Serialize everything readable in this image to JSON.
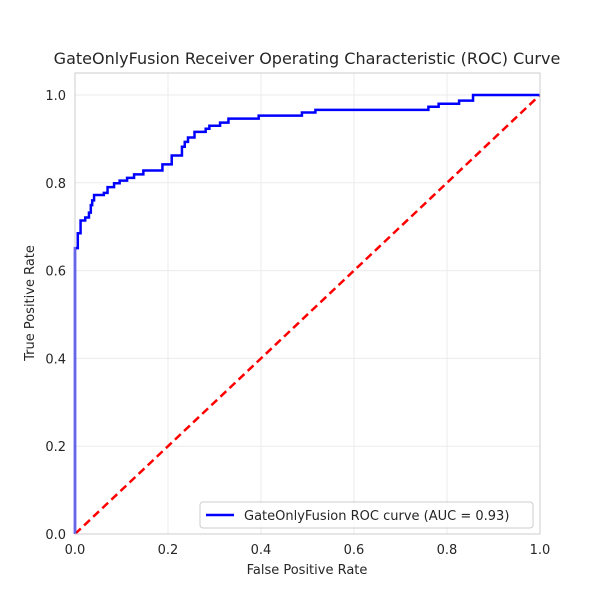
{
  "chart_data": {
    "type": "line",
    "title": "GateOnlyFusion Receiver Operating Characteristic (ROC) Curve",
    "xlabel": "False Positive Rate",
    "ylabel": "True Positive Rate",
    "xlim": [
      0,
      1
    ],
    "ylim": [
      0,
      1.05
    ],
    "x_ticks": [
      0,
      0.2,
      0.4,
      0.6,
      0.8,
      1
    ],
    "x_tick_labels": [
      "0.0",
      "0.2",
      "0.4",
      "0.6",
      "0.8",
      "1.0"
    ],
    "y_ticks": [
      0,
      0.2,
      0.4,
      0.6,
      0.8,
      1
    ],
    "y_tick_labels": [
      "0.0",
      "0.2",
      "0.4",
      "0.6",
      "0.8",
      "1.0"
    ],
    "grid": true,
    "legend_position": "bottom-right",
    "series": [
      {
        "name": "GateOnlyFusion ROC curve (AUC = 0.93)",
        "color": "#0000ff",
        "style": "solid",
        "x": [
          0,
          0,
          0.006,
          0.006,
          0.012,
          0.012,
          0.022,
          0.022,
          0.03,
          0.03,
          0.034,
          0.034,
          0.037,
          0.037,
          0.041,
          0.041,
          0.062,
          0.062,
          0.07,
          0.07,
          0.084,
          0.084,
          0.096,
          0.096,
          0.112,
          0.112,
          0.127,
          0.127,
          0.147,
          0.147,
          0.188,
          0.188,
          0.208,
          0.208,
          0.23,
          0.23,
          0.236,
          0.236,
          0.243,
          0.243,
          0.257,
          0.257,
          0.281,
          0.281,
          0.289,
          0.289,
          0.312,
          0.312,
          0.33,
          0.33,
          0.395,
          0.395,
          0.488,
          0.488,
          0.517,
          0.517,
          0.76,
          0.76,
          0.782,
          0.782,
          0.826,
          0.826,
          0.856,
          0.856,
          1.0
        ],
        "y": [
          0,
          0.651,
          0.651,
          0.685,
          0.685,
          0.714,
          0.714,
          0.721,
          0.721,
          0.732,
          0.732,
          0.749,
          0.749,
          0.76,
          0.76,
          0.772,
          0.772,
          0.777,
          0.777,
          0.79,
          0.79,
          0.799,
          0.799,
          0.805,
          0.805,
          0.811,
          0.811,
          0.819,
          0.819,
          0.828,
          0.828,
          0.842,
          0.842,
          0.862,
          0.862,
          0.882,
          0.882,
          0.893,
          0.893,
          0.903,
          0.903,
          0.916,
          0.916,
          0.923,
          0.923,
          0.93,
          0.93,
          0.937,
          0.937,
          0.946,
          0.946,
          0.953,
          0.953,
          0.96,
          0.96,
          0.966,
          0.966,
          0.973,
          0.973,
          0.98,
          0.98,
          0.987,
          0.987,
          1.0,
          1.0
        ]
      },
      {
        "name": "",
        "color": "#ff0000",
        "style": "dashed",
        "x": [
          0,
          1
        ],
        "y": [
          0,
          1
        ]
      }
    ]
  }
}
